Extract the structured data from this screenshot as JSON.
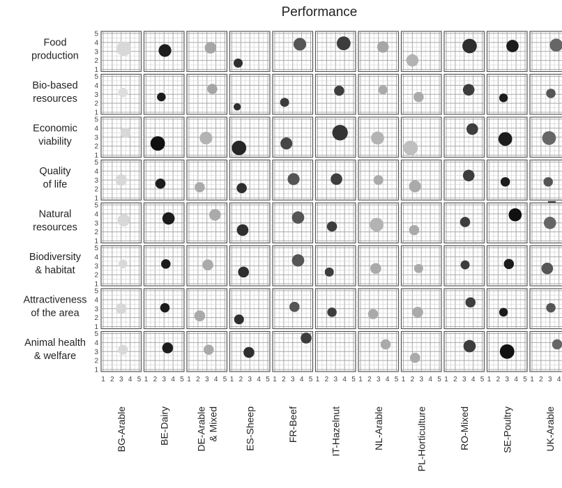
{
  "chart_data": {
    "type": "scatter",
    "title": "Performance",
    "side_label": "Performance",
    "xlim": [
      1,
      5
    ],
    "ylim": [
      1,
      5
    ],
    "x_ticks": [
      "1",
      "2",
      "3",
      "4",
      "5"
    ],
    "y_ticks": [
      "1",
      "2",
      "3",
      "4",
      "5"
    ],
    "grid": true,
    "color_scale": "light grey (low) to black (high)",
    "size_scale": "small (low) to large (high)",
    "rows": [
      {
        "label_lines": [
          "Food",
          "production"
        ]
      },
      {
        "label_lines": [
          "Bio-based",
          "resources"
        ]
      },
      {
        "label_lines": [
          "Economic",
          "viability"
        ]
      },
      {
        "label_lines": [
          "Quality",
          "of life"
        ]
      },
      {
        "label_lines": [
          "Natural",
          "resources"
        ]
      },
      {
        "label_lines": [
          "Biodiversity",
          "& habitat"
        ]
      },
      {
        "label_lines": [
          "Attractiveness",
          "of the area"
        ]
      },
      {
        "label_lines": [
          "Animal health",
          "& welfare"
        ]
      }
    ],
    "columns": [
      {
        "label_lines": [
          "BG-Arable"
        ]
      },
      {
        "label_lines": [
          "BE-Dairy"
        ]
      },
      {
        "label_lines": [
          "DE-Arable",
          "& Mixed"
        ]
      },
      {
        "label_lines": [
          "ES-Sheep"
        ]
      },
      {
        "label_lines": [
          "FR-Beef"
        ]
      },
      {
        "label_lines": [
          "IT-Hazelnut"
        ]
      },
      {
        "label_lines": [
          "NL-Arable"
        ]
      },
      {
        "label_lines": [
          "PL-Horticulture"
        ]
      },
      {
        "label_lines": [
          "RO-Mixed"
        ]
      },
      {
        "label_lines": [
          "SE-Poultry"
        ]
      },
      {
        "label_lines": [
          "UK-Arable"
        ]
      }
    ],
    "points": [
      [
        [
          3.3,
          3.3,
          2,
          4,
          "#d8d8d8"
        ],
        [
          3.1,
          3.1,
          1.6,
          3.5,
          "#1c1c1c"
        ],
        [
          3.4,
          3.4,
          2,
          3.2,
          "#a6a6a6"
        ],
        [
          1.7,
          1.7,
          1.7,
          2.5,
          "#2e2e2e"
        ],
        [
          3.8,
          3.8,
          1.8,
          3.5,
          "#555555"
        ],
        [
          3.9,
          3.9,
          2,
          3.8,
          "#3d3d3d"
        ],
        [
          3.5,
          3.5,
          2,
          3.2,
          "#a6a6a6"
        ],
        [
          2,
          2,
          2,
          3.4,
          "#b3b3b3"
        ],
        [
          3.6,
          3.6,
          2,
          4,
          "#2e2e2e"
        ],
        [
          3.6,
          3.6,
          1.7,
          3.4,
          "#1c1c1c"
        ],
        [
          3.7,
          3.7,
          2,
          3.6,
          "#666666"
        ]
      ],
      [
        [
          3.2,
          3.2,
          2,
          2.6,
          "#dddddd"
        ],
        [
          2.7,
          2.7,
          1.8,
          2.4,
          "#1c1c1c"
        ],
        [
          3.6,
          3.6,
          1.5,
          2.8,
          "#a6a6a6"
        ],
        [
          1.6,
          1.6,
          1.5,
          2,
          "#2e2e2e"
        ],
        [
          2.1,
          2.1,
          2,
          2.5,
          "#3d3d3d"
        ],
        [
          3.4,
          3.4,
          2,
          2.8,
          "#3d3d3d"
        ],
        [
          3.5,
          3.5,
          2,
          2.5,
          "#aaaaaa"
        ],
        [
          2.7,
          2.7,
          2,
          2.8,
          "#aaaaaa"
        ],
        [
          3.5,
          3.5,
          2,
          3.2,
          "#3d3d3d"
        ],
        [
          2.6,
          2.6,
          2,
          2.4,
          "#1c1c1c"
        ],
        [
          3.1,
          3.1,
          2,
          2.6,
          "#555555"
        ]
      ],
      [
        [
          3.5,
          3.5,
          2,
          2.8,
          "#d8d8d8"
        ],
        [
          2.3,
          2.3,
          1.5,
          4,
          "#111111"
        ],
        [
          2.9,
          2.9,
          2,
          3.5,
          "#b3b3b3"
        ],
        [
          1.8,
          1.8,
          2,
          4,
          "#262626"
        ],
        [
          2.3,
          2.3,
          2,
          3.3,
          "#474747"
        ],
        [
          3.5,
          3.5,
          2,
          4.3,
          "#333333"
        ],
        [
          2.9,
          2.9,
          2,
          3.6,
          "#b3b3b3"
        ],
        [
          1.8,
          1.8,
          2,
          4,
          "#bfbfbf"
        ],
        [
          3.9,
          3.9,
          2,
          3.2,
          "#3d3d3d"
        ],
        [
          2.8,
          2.8,
          2,
          3.8,
          "#1c1c1c"
        ],
        [
          2.9,
          2.9,
          2,
          3.8,
          "#666666"
        ]
      ],
      [
        [
          3,
          3,
          1.5,
          3.2,
          "#d8d8d8"
        ],
        [
          2.6,
          2.6,
          1.7,
          2.8,
          "#1c1c1c"
        ],
        [
          2.2,
          2.2,
          2,
          2.8,
          "#aaaaaa"
        ],
        [
          2.1,
          2.1,
          1.5,
          2.8,
          "#2e2e2e"
        ],
        [
          3.1,
          3.1,
          1.8,
          3.3,
          "#555555"
        ],
        [
          3.1,
          3.1,
          1.7,
          3.2,
          "#3d3d3d"
        ],
        [
          3,
          3,
          1.8,
          2.7,
          "#aaaaaa"
        ],
        [
          2.3,
          2.3,
          2,
          3.3,
          "#aaaaaa"
        ],
        [
          3.5,
          3.5,
          2,
          3.2,
          "#3d3d3d"
        ],
        [
          2.8,
          2.8,
          2,
          2.6,
          "#1c1c1c"
        ],
        [
          2.8,
          2.8,
          2,
          2.6,
          "#555555"
        ]
      ],
      [
        [
          3.3,
          3.3,
          1.5,
          3.4,
          "#d8d8d8"
        ],
        [
          3.5,
          3.5,
          1.9,
          3.4,
          "#1c1c1c"
        ],
        [
          3.9,
          3.9,
          1.7,
          3.2,
          "#aaaaaa"
        ],
        [
          2.2,
          2.2,
          2,
          3.2,
          "#2e2e2e"
        ],
        [
          3.6,
          3.6,
          1.8,
          3.4,
          "#555555"
        ],
        [
          2.6,
          2.6,
          1.7,
          2.8,
          "#3d3d3d"
        ],
        [
          2.8,
          2.8,
          2,
          3.8,
          "#b3b3b3"
        ],
        [
          2.2,
          2.2,
          2,
          2.8,
          "#aaaaaa"
        ],
        [
          3.1,
          3.1,
          1.5,
          2.8,
          "#3d3d3d"
        ],
        [
          3.9,
          3.9,
          2.2,
          3.6,
          "#111111"
        ],
        [
          3,
          3,
          2,
          3.4,
          "#666666"
        ]
      ],
      [
        [
          3.2,
          3.2,
          1.6,
          2.4,
          "#d8d8d8"
        ],
        [
          3.2,
          3.2,
          1.8,
          2.6,
          "#1c1c1c"
        ],
        [
          3.1,
          3.1,
          1.7,
          3,
          "#aaaaaa"
        ],
        [
          2.3,
          2.3,
          2,
          3,
          "#2e2e2e"
        ],
        [
          3.6,
          3.6,
          1.9,
          3.4,
          "#555555"
        ],
        [
          2.3,
          2.3,
          1.6,
          2.5,
          "#3d3d3d"
        ],
        [
          2.7,
          2.7,
          1.5,
          3,
          "#aaaaaa"
        ],
        [
          2.7,
          2.7,
          2,
          2.5,
          "#aaaaaa"
        ],
        [
          3.1,
          3.1,
          1.5,
          2.5,
          "#3d3d3d"
        ],
        [
          3.2,
          3.2,
          1.7,
          2.8,
          "#1c1c1c"
        ],
        [
          2.7,
          2.7,
          2,
          3.2,
          "#555555"
        ]
      ],
      [
        [
          3,
          3,
          1.5,
          3,
          "#d8d8d8"
        ],
        [
          3.1,
          3.1,
          1.6,
          2.6,
          "#1c1c1c"
        ],
        [
          2.2,
          2.2,
          2,
          3,
          "#aaaaaa"
        ],
        [
          1.8,
          1.8,
          1.6,
          2.7,
          "#2e2e2e"
        ],
        [
          3.2,
          3.2,
          1.8,
          2.8,
          "#555555"
        ],
        [
          2.6,
          2.6,
          1.6,
          2.6,
          "#3d3d3d"
        ],
        [
          2.4,
          2.4,
          1.6,
          2.8,
          "#aaaaaa"
        ],
        [
          2.6,
          2.6,
          2,
          3,
          "#aaaaaa"
        ],
        [
          3.7,
          3.7,
          2,
          2.8,
          "#3d3d3d"
        ],
        [
          2.6,
          2.6,
          1.8,
          2.4,
          "#1c1c1c"
        ],
        [
          3.1,
          3.1,
          2,
          2.6,
          "#555555"
        ]
      ],
      [
        [
          3.2,
          3.2,
          1.6,
          2.7,
          "#d8d8d8"
        ],
        [
          3.4,
          3.4,
          1.9,
          3,
          "#1c1c1c"
        ],
        [
          3.2,
          3.2,
          1.8,
          2.8,
          "#aaaaaa"
        ],
        [
          2.9,
          2.9,
          2,
          3,
          "#2e2e2e"
        ],
        [
          4.5,
          4.5,
          1.6,
          3,
          "#3d3d3d"
        ],
        null,
        [
          3.8,
          3.8,
          2,
          2.8,
          "#aaaaaa"
        ],
        [
          2.3,
          2.3,
          2,
          2.8,
          "#aaaaaa"
        ],
        [
          3.6,
          3.6,
          2,
          3.4,
          "#3d3d3d"
        ],
        [
          3,
          3,
          1.5,
          4,
          "#111111"
        ],
        [
          3.8,
          3.8,
          2,
          2.8,
          "#666666"
        ]
      ]
    ]
  }
}
